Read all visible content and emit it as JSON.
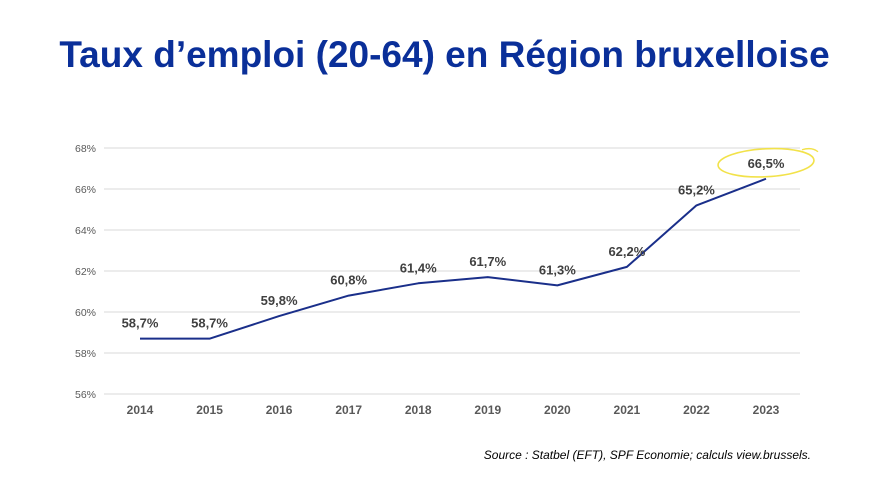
{
  "title": "Taux d’emploi (20-64) en Région bruxelloise",
  "source": "Source : Statbel (EFT), SPF Economie; calculs view.brussels.",
  "colors": {
    "title": "#0a2f99",
    "line": "#1a2f8a",
    "highlight": "#f2e24a",
    "grid": "#d9d9d9"
  },
  "chart_data": {
    "type": "line",
    "title": "",
    "xlabel": "",
    "ylabel": "",
    "categories": [
      "2014",
      "2015",
      "2016",
      "2017",
      "2018",
      "2019",
      "2020",
      "2021",
      "2022",
      "2023"
    ],
    "values": [
      58.7,
      58.7,
      59.8,
      60.8,
      61.4,
      61.7,
      61.3,
      62.2,
      65.2,
      66.5
    ],
    "data_labels": [
      "58,7%",
      "58,7%",
      "59,8%",
      "60,8%",
      "61,4%",
      "61,7%",
      "61,3%",
      "62,2%",
      "65,2%",
      "66,5%"
    ],
    "ylim": [
      56,
      68
    ],
    "yticks": [
      56,
      58,
      60,
      62,
      64,
      66,
      68
    ],
    "ytick_labels": [
      "56%",
      "58%",
      "60%",
      "62%",
      "64%",
      "66%",
      "68%"
    ],
    "grid": true,
    "legend": "none",
    "highlight": "2023"
  }
}
